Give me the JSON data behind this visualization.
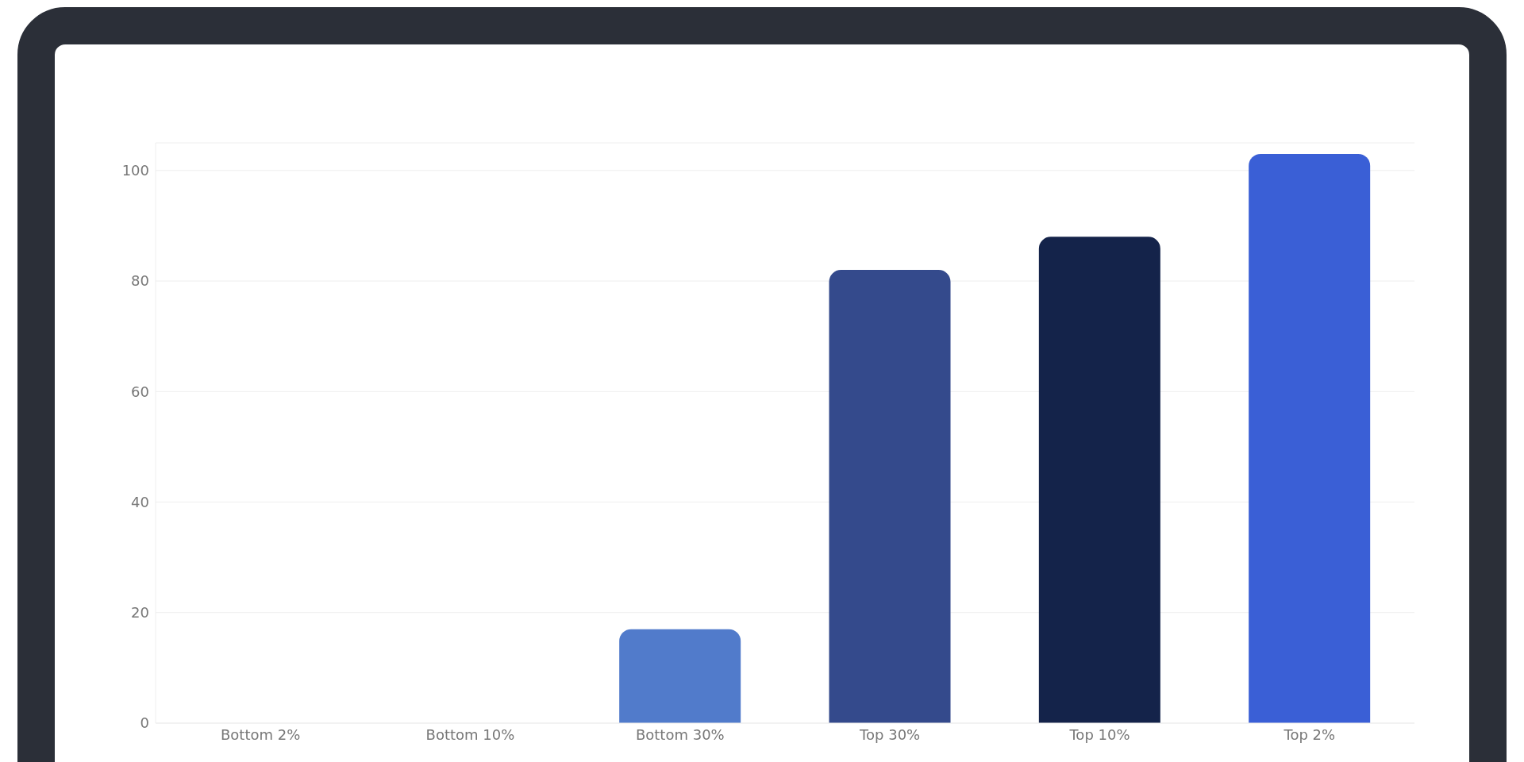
{
  "chart_data": {
    "type": "bar",
    "categories": [
      "Bottom 2%",
      "Bottom 10%",
      "Bottom 30%",
      "Top 30%",
      "Top 10%",
      "Top 2%"
    ],
    "values": [
      0,
      0,
      17,
      82,
      88,
      103
    ],
    "colors": [
      "#517bcb",
      "#517bcb",
      "#517bcb",
      "#344a8c",
      "#14234a",
      "#3a5fd6"
    ],
    "ylim": [
      0,
      105
    ],
    "yticks": [
      0,
      20,
      40,
      60,
      80,
      100
    ],
    "grid": "y"
  }
}
